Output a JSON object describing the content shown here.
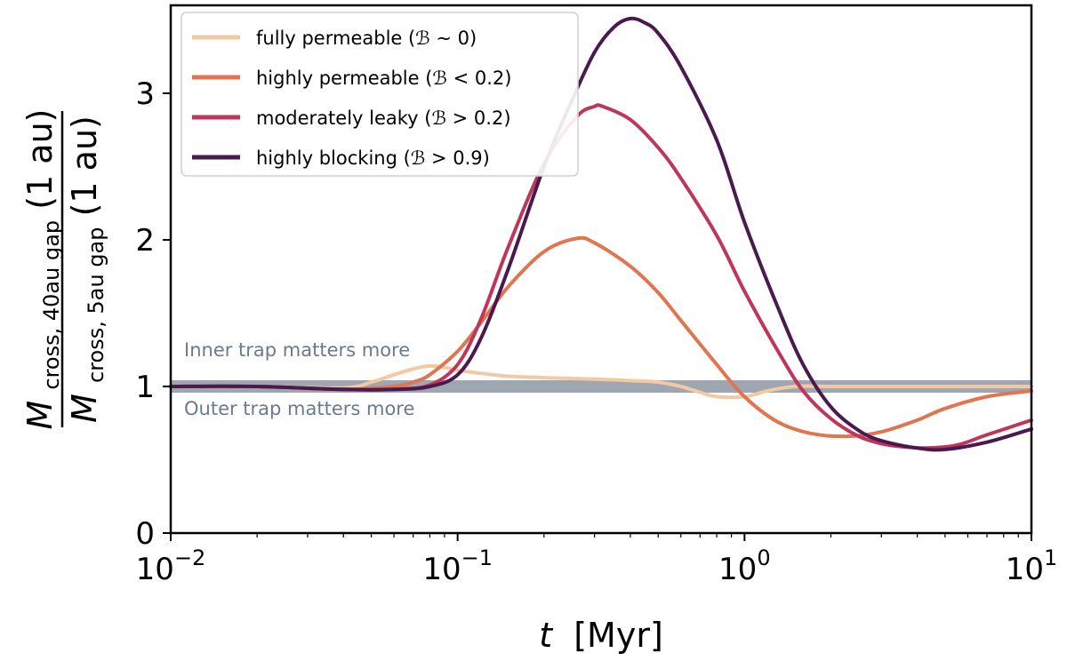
{
  "chart_data": {
    "type": "line",
    "xscale": "log",
    "xlim": [
      0.01,
      10
    ],
    "ylim": [
      0,
      3.6
    ],
    "xlabel": {
      "var": "t",
      "unit": "[Myr]"
    },
    "ylabel": {
      "num_var": "M",
      "num_sub": "cross, 40au gap",
      "num_arg": "(1 au)",
      "den_var": "M",
      "den_sub": "cross, 5au gap",
      "den_arg": "(1 au)"
    },
    "x_ticks": [
      {
        "value": 0.01,
        "base": "10",
        "exp": "−2"
      },
      {
        "value": 0.1,
        "base": "10",
        "exp": "−1"
      },
      {
        "value": 1,
        "base": "10",
        "exp": "0"
      },
      {
        "value": 10,
        "base": "10",
        "exp": "1"
      }
    ],
    "y_ticks": [
      {
        "value": 0,
        "label": "0"
      },
      {
        "value": 1,
        "label": "1"
      },
      {
        "value": 2,
        "label": "2"
      },
      {
        "value": 3,
        "label": "3"
      }
    ],
    "grid": false,
    "legend_position": "top-left",
    "reference_line": {
      "y": 1,
      "color": "#8c96a3"
    },
    "annotations": {
      "above": "Inner trap matters more",
      "below": "Outer trap matters more",
      "color": "#6b7a8c"
    },
    "series": [
      {
        "name": "fully permeable",
        "cond": "ℬ ∼ 0",
        "color": "#f3c9a3",
        "x": [
          0.01,
          0.02,
          0.04,
          0.05,
          0.06,
          0.07,
          0.08,
          0.09,
          0.1,
          0.12,
          0.15,
          0.2,
          0.3,
          0.4,
          0.5,
          0.6,
          0.7,
          0.8,
          1.0,
          1.2,
          1.5,
          2,
          3,
          5,
          10
        ],
        "y": [
          1.0,
          1.0,
          0.99,
          1.03,
          1.08,
          1.12,
          1.14,
          1.13,
          1.11,
          1.09,
          1.07,
          1.06,
          1.05,
          1.04,
          1.03,
          1.0,
          0.96,
          0.93,
          0.93,
          0.97,
          1.0,
          1.0,
          1.0,
          1.0,
          1.0
        ]
      },
      {
        "name": "highly permeable",
        "cond": "ℬ < 0.2",
        "color": "#e07550",
        "x": [
          0.01,
          0.02,
          0.04,
          0.06,
          0.07,
          0.08,
          0.1,
          0.12,
          0.15,
          0.2,
          0.26,
          0.3,
          0.4,
          0.5,
          0.6,
          0.8,
          1.0,
          1.3,
          1.7,
          2.3,
          3,
          4,
          5,
          7,
          10
        ],
        "y": [
          1.0,
          1.0,
          0.98,
          1.0,
          1.03,
          1.08,
          1.24,
          1.43,
          1.68,
          1.92,
          2.01,
          1.98,
          1.82,
          1.64,
          1.45,
          1.15,
          0.93,
          0.76,
          0.68,
          0.66,
          0.69,
          0.77,
          0.85,
          0.93,
          0.97
        ]
      },
      {
        "name": "moderately leaky",
        "cond": "ℬ > 0.2",
        "color": "#c0355a",
        "x": [
          0.01,
          0.02,
          0.04,
          0.06,
          0.08,
          0.1,
          0.12,
          0.15,
          0.2,
          0.26,
          0.3,
          0.32,
          0.4,
          0.5,
          0.6,
          0.8,
          1.0,
          1.3,
          1.6,
          2,
          2.5,
          3,
          3.5,
          4.3,
          5.5,
          7,
          10
        ],
        "y": [
          1.0,
          1.0,
          0.98,
          0.98,
          1.01,
          1.15,
          1.45,
          1.95,
          2.52,
          2.84,
          2.91,
          2.91,
          2.82,
          2.63,
          2.42,
          2.03,
          1.65,
          1.25,
          0.97,
          0.78,
          0.66,
          0.61,
          0.59,
          0.58,
          0.6,
          0.67,
          0.77
        ]
      },
      {
        "name": "highly blocking",
        "cond": "ℬ > 0.9",
        "color": "#4a1a4f",
        "x": [
          0.01,
          0.02,
          0.04,
          0.06,
          0.08,
          0.1,
          0.12,
          0.15,
          0.2,
          0.25,
          0.3,
          0.35,
          0.4,
          0.45,
          0.5,
          0.6,
          0.8,
          1.0,
          1.3,
          1.6,
          2,
          2.5,
          3,
          4,
          5,
          7,
          10
        ],
        "y": [
          1.0,
          1.0,
          0.98,
          0.98,
          1.0,
          1.08,
          1.32,
          1.8,
          2.5,
          2.95,
          3.28,
          3.45,
          3.51,
          3.48,
          3.41,
          3.18,
          2.68,
          2.12,
          1.55,
          1.15,
          0.86,
          0.7,
          0.63,
          0.58,
          0.57,
          0.62,
          0.71
        ]
      }
    ]
  }
}
